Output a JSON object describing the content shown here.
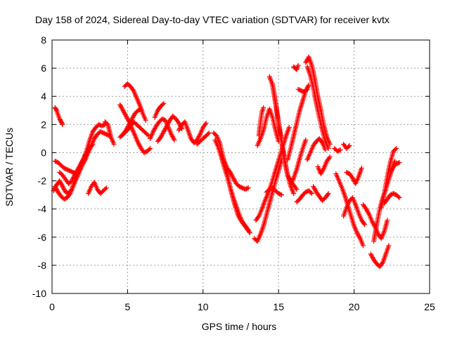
{
  "chart_data": {
    "type": "scatter",
    "title": "Day 158 of 2024, Sidereal Day-to-day VTEC variation (SDTVAR) for receiver kvtx",
    "xlabel": "GPS time / hours",
    "ylabel": "SDTVAR / TECUs",
    "xlim": [
      0,
      25
    ],
    "ylim": [
      -10,
      8
    ],
    "xticks": [
      0,
      5,
      10,
      15,
      20,
      25
    ],
    "yticks": [
      -10,
      -8,
      -6,
      -4,
      -2,
      0,
      2,
      4,
      6,
      8
    ],
    "grid": true,
    "marker": "+",
    "color": "#ff0000",
    "series": [
      {
        "x": [
          0.2,
          0.3,
          0.4,
          0.5,
          0.6,
          0.7
        ],
        "y": [
          3.2,
          3.0,
          2.7,
          2.4,
          2.2,
          2.0
        ]
      },
      {
        "x": [
          0.2,
          0.4,
          0.6,
          0.8,
          1.0,
          1.2,
          1.4,
          1.6
        ],
        "y": [
          -0.6,
          -0.7,
          -0.9,
          -1.1,
          -1.2,
          -1.3,
          -1.4,
          -1.5
        ]
      },
      {
        "x": [
          0.1,
          0.3,
          0.5,
          0.7,
          0.9,
          1.1,
          1.3,
          1.5,
          1.7,
          1.9,
          2.1,
          2.3,
          2.5,
          2.7,
          2.9,
          3.1,
          3.3,
          3.5
        ],
        "y": [
          -2.7,
          -2.3,
          -2.0,
          -2.4,
          -2.8,
          -2.9,
          -2.6,
          -2.0,
          -1.4,
          -0.9,
          -0.4,
          0.2,
          0.9,
          1.5,
          1.8,
          2.0,
          1.9,
          2.0
        ]
      },
      {
        "x": [
          0.2,
          0.4,
          0.6,
          0.8,
          1.0,
          1.2,
          1.4,
          1.6,
          1.8,
          2.0,
          2.2,
          2.4,
          2.6,
          2.8,
          3.0,
          3.2,
          3.4,
          3.6,
          3.8
        ],
        "y": [
          -2.4,
          -2.8,
          -3.1,
          -3.3,
          -3.2,
          -2.9,
          -2.4,
          -1.9,
          -1.4,
          -0.9,
          -0.5,
          0.0,
          0.5,
          1.0,
          1.3,
          1.5,
          1.4,
          1.3,
          1.2
        ]
      },
      {
        "x": [
          0.5,
          0.7,
          0.9,
          1.1,
          1.3,
          1.5,
          1.7,
          1.9,
          2.1,
          2.3,
          2.5,
          2.7
        ],
        "y": [
          -1.4,
          -1.6,
          -1.9,
          -2.2,
          -2.0,
          -1.6,
          -1.2,
          -0.8,
          -0.4,
          0.0,
          0.3,
          0.6
        ]
      },
      {
        "x": [
          2.4,
          2.6,
          2.8,
          3.0,
          3.2,
          3.4,
          3.6
        ],
        "y": [
          -2.9,
          -2.4,
          -2.1,
          -2.6,
          -2.9,
          -2.7,
          -2.5
        ]
      },
      {
        "x": [
          3.5,
          3.7,
          3.9,
          4.1
        ],
        "y": [
          2.2,
          2.0,
          1.1,
          0.6
        ]
      },
      {
        "x": [
          4.5,
          4.7,
          4.9,
          5.1,
          5.3,
          5.5,
          5.7,
          5.9
        ],
        "y": [
          1.1,
          1.3,
          1.6,
          2.0,
          2.4,
          2.8,
          3.0,
          3.1
        ]
      },
      {
        "x": [
          4.8,
          5.0,
          5.2,
          5.4,
          5.6,
          5.8,
          6.0,
          6.2
        ],
        "y": [
          4.7,
          4.9,
          4.7,
          4.4,
          3.9,
          3.4,
          2.8,
          2.3
        ]
      },
      {
        "x": [
          4.5,
          4.7,
          4.9,
          5.1,
          5.3,
          5.5,
          5.7,
          5.9,
          6.1,
          6.3,
          6.5
        ],
        "y": [
          3.4,
          3.0,
          2.6,
          2.2,
          1.7,
          1.2,
          0.7,
          0.3,
          0.0,
          0.1,
          0.3
        ]
      },
      {
        "x": [
          4.6,
          4.8,
          5.0,
          5.2,
          5.4,
          5.6,
          5.8,
          6.0,
          6.2,
          6.4
        ],
        "y": [
          1.2,
          1.4,
          1.6,
          1.9,
          2.2,
          2.0,
          1.8,
          1.6,
          1.4,
          1.2
        ]
      },
      {
        "x": [
          6.8,
          7.0,
          7.2,
          7.4
        ],
        "y": [
          2.5,
          3.0,
          3.3,
          3.5
        ]
      },
      {
        "x": [
          6.5,
          6.7,
          6.9,
          7.1,
          7.3,
          7.5,
          7.7,
          7.9,
          8.1
        ],
        "y": [
          1.0,
          1.5,
          1.9,
          2.2,
          2.4,
          2.3,
          1.8,
          1.3,
          0.9
        ]
      },
      {
        "x": [
          7.0,
          7.2,
          7.4,
          7.6,
          7.8,
          8.0,
          8.2,
          8.4,
          8.6
        ],
        "y": [
          0.8,
          1.1,
          1.5,
          1.9,
          2.3,
          2.6,
          2.4,
          2.1,
          1.7
        ]
      },
      {
        "x": [
          8.4,
          8.6,
          8.8,
          9.0,
          9.2,
          9.4,
          9.6,
          9.8,
          10.0,
          10.2
        ],
        "y": [
          1.6,
          2.0,
          2.2,
          1.6,
          1.0,
          0.7,
          0.9,
          1.3,
          1.8,
          2.1
        ]
      },
      {
        "x": [
          9.6,
          9.8,
          10.0,
          10.2,
          10.4
        ],
        "y": [
          0.6,
          0.8,
          1.0,
          1.2,
          1.4
        ]
      },
      {
        "x": [
          10.7,
          10.9,
          11.1,
          11.3,
          11.5,
          11.7,
          11.9,
          12.1,
          12.3,
          12.5,
          12.7,
          12.9,
          13.1
        ],
        "y": [
          1.4,
          1.2,
          0.7,
          -0.2,
          -1.0,
          -2.0,
          -2.9,
          -3.7,
          -4.4,
          -4.8,
          -5.1,
          -5.4,
          -5.7
        ]
      },
      {
        "x": [
          10.8,
          11.0,
          11.2,
          11.4,
          11.6,
          11.8,
          12.0,
          12.2,
          12.4,
          12.6,
          12.8,
          13.0
        ],
        "y": [
          0.9,
          0.4,
          -0.3,
          -1.0,
          -1.7,
          -2.5,
          -3.2,
          -3.8,
          -4.4,
          -4.9,
          -5.2,
          -5.5
        ]
      },
      {
        "x": [
          11.2,
          11.4,
          11.6,
          11.8,
          12.0,
          12.2,
          12.4,
          12.6,
          12.8,
          13.0
        ],
        "y": [
          -0.1,
          -0.6,
          -1.1,
          -1.4,
          -1.8,
          -2.2,
          -2.4,
          -2.5,
          -2.6,
          -2.5
        ]
      },
      {
        "x": [
          13.4,
          13.6,
          13.8,
          14.0,
          14.2,
          14.4,
          14.6,
          14.8,
          15.0,
          15.2
        ],
        "y": [
          -6.1,
          -6.3,
          -5.8,
          -5.2,
          -4.4,
          -3.6,
          -2.8,
          -2.0,
          -1.3,
          -0.5
        ]
      },
      {
        "x": [
          13.5,
          13.7,
          13.9,
          14.1,
          14.3,
          14.5,
          14.7,
          14.9,
          15.1,
          15.3,
          15.5,
          15.7
        ],
        "y": [
          -4.8,
          -4.5,
          -4.0,
          -3.4,
          -2.9,
          -2.3,
          -1.6,
          -0.9,
          -0.2,
          0.5,
          1.2,
          1.8
        ]
      },
      {
        "x": [
          13.6,
          13.8,
          14.0,
          14.2,
          14.4,
          14.6,
          14.8,
          15.0
        ],
        "y": [
          0.5,
          1.0,
          1.6,
          2.5,
          3.1,
          2.5,
          1.6,
          0.8
        ]
      },
      {
        "x": [
          13.7,
          13.8,
          13.9,
          14.0
        ],
        "y": [
          1.2,
          2.2,
          2.9,
          3.2
        ]
      },
      {
        "x": [
          14.4,
          14.6,
          14.8,
          15.0,
          15.2,
          15.4,
          15.6,
          15.8,
          16.0,
          16.2
        ],
        "y": [
          5.4,
          4.8,
          3.5,
          2.2,
          0.8,
          -0.6,
          -1.6,
          -2.0,
          -2.3,
          -2.6
        ]
      },
      {
        "x": [
          14.6,
          14.8,
          15.0,
          15.2,
          15.4,
          15.6,
          15.8,
          16.0
        ],
        "y": [
          4.9,
          3.6,
          2.0,
          0.8,
          -0.5,
          -1.6,
          -2.4,
          -2.9
        ]
      },
      {
        "x": [
          14.2,
          14.4,
          14.6,
          14.8,
          15.0,
          15.2
        ],
        "y": [
          -2.8,
          -2.6,
          -2.5,
          -2.7,
          -2.9,
          -3.0
        ]
      },
      {
        "x": [
          15.6,
          15.8,
          16.0,
          16.2,
          16.4,
          16.6,
          16.8,
          17.0
        ],
        "y": [
          -0.5,
          0.3,
          1.2,
          2.1,
          3.0,
          3.7,
          4.4,
          4.8
        ]
      },
      {
        "x": [
          15.8,
          16.0,
          16.2,
          16.4,
          16.6,
          16.8
        ],
        "y": [
          -2.2,
          -1.8,
          -1.2,
          -0.4,
          0.3,
          0.9
        ]
      },
      {
        "x": [
          16.0,
          16.1,
          16.2,
          16.3
        ],
        "y": [
          6.1,
          6.0,
          5.9,
          6.2
        ]
      },
      {
        "x": [
          16.3,
          16.5,
          16.7,
          16.9
        ],
        "y": [
          4.5,
          4.4,
          4.3,
          4.5
        ]
      },
      {
        "x": [
          16.2,
          16.4,
          16.6,
          16.8,
          17.0,
          17.2
        ],
        "y": [
          -3.5,
          -3.3,
          -3.0,
          -2.8,
          -2.7,
          -2.9
        ]
      },
      {
        "x": [
          16.8,
          17.0,
          17.2,
          17.4,
          17.6,
          17.8,
          18.0,
          18.2,
          18.4
        ],
        "y": [
          6.4,
          6.8,
          6.2,
          5.2,
          4.0,
          3.0,
          1.9,
          1.1,
          0.6
        ]
      },
      {
        "x": [
          16.9,
          17.1,
          17.3,
          17.5,
          17.7,
          17.9,
          18.1,
          18.3
        ],
        "y": [
          6.1,
          5.5,
          4.6,
          3.5,
          2.5,
          1.6,
          0.8,
          0.3
        ]
      },
      {
        "x": [
          16.9,
          17.1,
          17.3,
          17.5,
          17.7,
          17.9,
          18.1
        ],
        "y": [
          -0.5,
          0.0,
          0.5,
          0.8,
          1.0,
          0.7,
          0.2
        ]
      },
      {
        "x": [
          17.3,
          17.5,
          17.7,
          17.9,
          18.1,
          18.3
        ],
        "y": [
          -2.4,
          -2.8,
          -3.1,
          -3.4,
          -3.2,
          -2.9
        ]
      },
      {
        "x": [
          17.6,
          17.8,
          18.0,
          18.2,
          18.4
        ],
        "y": [
          -1.0,
          -1.5,
          -1.1,
          -0.6,
          -0.3
        ]
      },
      {
        "x": [
          18.7,
          18.9,
          19.1
        ],
        "y": [
          0.3,
          0.1,
          0.2
        ]
      },
      {
        "x": [
          19.3,
          19.5,
          19.7
        ],
        "y": [
          0.6,
          0.3,
          0.5
        ]
      },
      {
        "x": [
          18.8,
          19.0,
          19.2,
          19.4,
          19.6,
          19.8,
          20.0,
          20.2,
          20.4,
          20.6
        ],
        "y": [
          -1.5,
          -2.0,
          -2.5,
          -3.1,
          -3.8,
          -4.5,
          -5.2,
          -5.7,
          -6.1,
          -6.6
        ]
      },
      {
        "x": [
          19.3,
          19.5,
          19.7,
          19.9,
          20.1,
          20.3,
          20.5,
          20.7
        ],
        "y": [
          -4.5,
          -3.9,
          -3.4,
          -3.2,
          -3.7,
          -4.3,
          -4.8,
          -5.1
        ]
      },
      {
        "x": [
          19.5,
          19.7,
          19.9,
          20.1,
          20.3,
          20.5
        ],
        "y": [
          -1.4,
          -1.5,
          -1.8,
          -2.2,
          -1.7,
          -1.1
        ]
      },
      {
        "x": [
          20.6,
          20.8,
          21.0,
          21.2,
          21.4,
          21.6,
          21.8,
          22.0,
          22.2
        ],
        "y": [
          -3.7,
          -4.0,
          -4.4,
          -4.9,
          -5.3,
          -5.8,
          -6.1,
          -5.6,
          -4.8
        ]
      },
      {
        "x": [
          21.1,
          21.3,
          21.5,
          21.7,
          21.9,
          22.1,
          22.3
        ],
        "y": [
          -7.2,
          -7.6,
          -7.9,
          -8.1,
          -7.8,
          -7.2,
          -6.6
        ]
      },
      {
        "x": [
          21.3,
          21.5,
          21.7,
          21.9,
          22.1,
          22.3,
          22.5,
          22.7
        ],
        "y": [
          -6.3,
          -5.1,
          -4.0,
          -3.2,
          -2.6,
          -1.9,
          -1.2,
          -0.6
        ]
      },
      {
        "x": [
          21.8,
          22.0,
          22.2,
          22.4,
          22.6,
          22.8
        ],
        "y": [
          -3.9,
          -2.9,
          -1.7,
          -0.7,
          0.1,
          0.3
        ]
      },
      {
        "x": [
          22.0,
          22.2,
          22.4,
          22.6,
          22.8,
          23.0
        ],
        "y": [
          -3.6,
          -3.3,
          -3.0,
          -2.9,
          -3.0,
          -3.2
        ]
      },
      {
        "x": [
          22.4,
          22.6,
          22.8,
          23.0
        ],
        "y": [
          -1.4,
          -1.0,
          -0.8,
          -0.7
        ]
      }
    ]
  }
}
